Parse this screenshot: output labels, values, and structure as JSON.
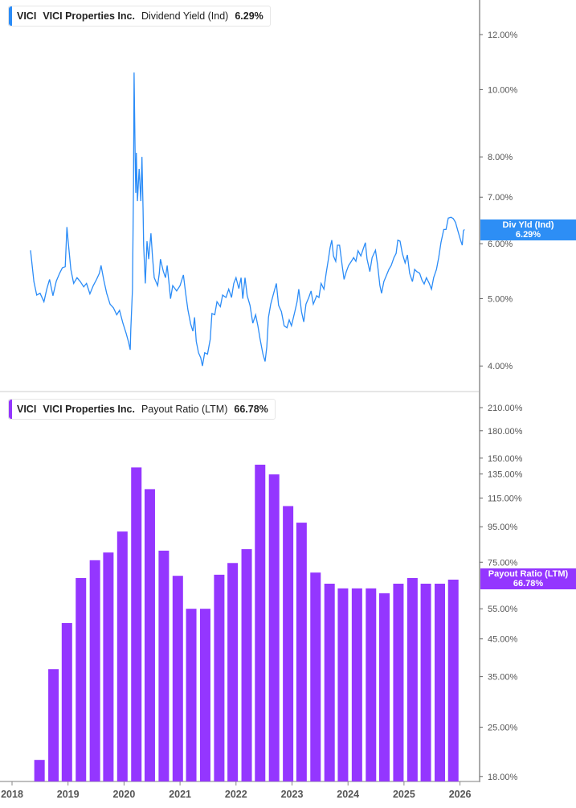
{
  "colors": {
    "line": "#2b8cf7",
    "bars": "#9436ff",
    "axis": "#aaaaaa"
  },
  "top_legend": {
    "ticker": "VICI",
    "company": "VICI Properties Inc.",
    "metric": "Dividend Yield (Ind)",
    "value": "6.29%"
  },
  "bottom_legend": {
    "ticker": "VICI",
    "company": "VICI Properties Inc.",
    "metric": "Payout Ratio (LTM)",
    "value": "66.78%"
  },
  "top_tag": {
    "label": "Div Yld (Ind)",
    "value": "6.29%"
  },
  "bottom_tag": {
    "label": "Payout Ratio (LTM)",
    "value": "66.78%"
  },
  "chart_data": [
    {
      "type": "line",
      "scale": "log",
      "series_name": "Dividend Yield (Ind)",
      "y_ticks": [
        "12.00%",
        "10.00%",
        "8.00%",
        "7.00%",
        "6.00%",
        "5.00%",
        "4.00%"
      ],
      "y_tick_values": [
        12,
        10,
        8,
        7,
        6,
        5,
        4
      ],
      "points": [
        [
          2018.33,
          5.87
        ],
        [
          2018.39,
          5.29
        ],
        [
          2018.44,
          5.06
        ],
        [
          2018.5,
          5.09
        ],
        [
          2018.57,
          4.95
        ],
        [
          2018.62,
          5.16
        ],
        [
          2018.67,
          5.33
        ],
        [
          2018.73,
          5.05
        ],
        [
          2018.79,
          5.3
        ],
        [
          2018.85,
          5.44
        ],
        [
          2018.9,
          5.54
        ],
        [
          2018.95,
          5.56
        ],
        [
          2018.98,
          6.34
        ],
        [
          2019.0,
          6.07
        ],
        [
          2019.05,
          5.51
        ],
        [
          2019.1,
          5.26
        ],
        [
          2019.16,
          5.36
        ],
        [
          2019.22,
          5.29
        ],
        [
          2019.28,
          5.2
        ],
        [
          2019.33,
          5.26
        ],
        [
          2019.39,
          5.08
        ],
        [
          2019.45,
          5.22
        ],
        [
          2019.51,
          5.33
        ],
        [
          2019.56,
          5.44
        ],
        [
          2019.59,
          5.58
        ],
        [
          2019.64,
          5.31
        ],
        [
          2019.69,
          5.09
        ],
        [
          2019.75,
          4.91
        ],
        [
          2019.81,
          4.85
        ],
        [
          2019.87,
          4.74
        ],
        [
          2019.92,
          4.81
        ],
        [
          2019.98,
          4.61
        ],
        [
          2020.04,
          4.45
        ],
        [
          2020.08,
          4.33
        ],
        [
          2020.11,
          4.22
        ],
        [
          2020.12,
          4.51
        ],
        [
          2020.15,
          5.16
        ],
        [
          2020.17,
          7.29
        ],
        [
          2020.18,
          10.58
        ],
        [
          2020.2,
          7.89
        ],
        [
          2020.21,
          7.1
        ],
        [
          2020.22,
          8.11
        ],
        [
          2020.24,
          6.91
        ],
        [
          2020.27,
          7.69
        ],
        [
          2020.3,
          6.91
        ],
        [
          2020.32,
          8.0
        ],
        [
          2020.34,
          6.7
        ],
        [
          2020.35,
          5.97
        ],
        [
          2020.38,
          5.26
        ],
        [
          2020.41,
          6.05
        ],
        [
          2020.44,
          5.7
        ],
        [
          2020.48,
          6.21
        ],
        [
          2020.51,
          5.73
        ],
        [
          2020.54,
          5.36
        ],
        [
          2020.6,
          5.22
        ],
        [
          2020.63,
          5.44
        ],
        [
          2020.65,
          5.7
        ],
        [
          2020.7,
          5.48
        ],
        [
          2020.74,
          5.36
        ],
        [
          2020.77,
          5.58
        ],
        [
          2020.8,
          5.29
        ],
        [
          2020.83,
          5.0
        ],
        [
          2020.87,
          5.22
        ],
        [
          2020.94,
          5.13
        ],
        [
          2021.0,
          5.22
        ],
        [
          2021.06,
          5.41
        ],
        [
          2021.1,
          5.09
        ],
        [
          2021.14,
          4.82
        ],
        [
          2021.19,
          4.6
        ],
        [
          2021.23,
          4.49
        ],
        [
          2021.26,
          4.7
        ],
        [
          2021.29,
          4.34
        ],
        [
          2021.33,
          4.18
        ],
        [
          2021.37,
          4.11
        ],
        [
          2021.4,
          4.0
        ],
        [
          2021.44,
          4.18
        ],
        [
          2021.49,
          4.16
        ],
        [
          2021.54,
          4.37
        ],
        [
          2021.57,
          4.76
        ],
        [
          2021.62,
          4.74
        ],
        [
          2021.66,
          4.95
        ],
        [
          2021.72,
          4.87
        ],
        [
          2021.76,
          5.06
        ],
        [
          2021.82,
          5.02
        ],
        [
          2021.87,
          5.16
        ],
        [
          2021.92,
          5.02
        ],
        [
          2021.96,
          5.26
        ],
        [
          2022.0,
          5.36
        ],
        [
          2022.05,
          5.17
        ],
        [
          2022.09,
          5.36
        ],
        [
          2022.12,
          5.0
        ],
        [
          2022.16,
          5.36
        ],
        [
          2022.2,
          5.05
        ],
        [
          2022.25,
          4.89
        ],
        [
          2022.3,
          4.61
        ],
        [
          2022.35,
          4.74
        ],
        [
          2022.39,
          4.57
        ],
        [
          2022.43,
          4.37
        ],
        [
          2022.48,
          4.16
        ],
        [
          2022.52,
          4.06
        ],
        [
          2022.55,
          4.26
        ],
        [
          2022.58,
          4.7
        ],
        [
          2022.62,
          4.91
        ],
        [
          2022.66,
          5.05
        ],
        [
          2022.72,
          5.26
        ],
        [
          2022.76,
          4.89
        ],
        [
          2022.81,
          4.79
        ],
        [
          2022.86,
          4.57
        ],
        [
          2022.91,
          4.54
        ],
        [
          2022.95,
          4.66
        ],
        [
          2022.99,
          4.57
        ],
        [
          2023.05,
          4.79
        ],
        [
          2023.09,
          4.95
        ],
        [
          2023.12,
          5.16
        ],
        [
          2023.17,
          4.79
        ],
        [
          2023.21,
          4.63
        ],
        [
          2023.25,
          4.91
        ],
        [
          2023.3,
          5.02
        ],
        [
          2023.34,
          5.13
        ],
        [
          2023.38,
          4.91
        ],
        [
          2023.44,
          5.05
        ],
        [
          2023.48,
          5.02
        ],
        [
          2023.52,
          5.26
        ],
        [
          2023.57,
          5.16
        ],
        [
          2023.61,
          5.44
        ],
        [
          2023.65,
          5.7
        ],
        [
          2023.68,
          5.92
        ],
        [
          2023.71,
          6.07
        ],
        [
          2023.74,
          5.76
        ],
        [
          2023.78,
          5.66
        ],
        [
          2023.81,
          5.97
        ],
        [
          2023.85,
          5.97
        ],
        [
          2023.9,
          5.55
        ],
        [
          2023.93,
          5.33
        ],
        [
          2023.97,
          5.47
        ],
        [
          2024.01,
          5.58
        ],
        [
          2024.06,
          5.66
        ],
        [
          2024.1,
          5.73
        ],
        [
          2024.14,
          5.66
        ],
        [
          2024.18,
          5.86
        ],
        [
          2024.23,
          5.76
        ],
        [
          2024.27,
          5.89
        ],
        [
          2024.31,
          6.02
        ],
        [
          2024.34,
          5.7
        ],
        [
          2024.39,
          5.47
        ],
        [
          2024.43,
          5.73
        ],
        [
          2024.49,
          5.87
        ],
        [
          2024.53,
          5.58
        ],
        [
          2024.57,
          5.22
        ],
        [
          2024.6,
          5.09
        ],
        [
          2024.64,
          5.29
        ],
        [
          2024.69,
          5.41
        ],
        [
          2024.73,
          5.51
        ],
        [
          2024.77,
          5.58
        ],
        [
          2024.82,
          5.73
        ],
        [
          2024.86,
          5.81
        ],
        [
          2024.89,
          6.07
        ],
        [
          2024.93,
          6.05
        ],
        [
          2024.97,
          5.81
        ],
        [
          2025.02,
          5.63
        ],
        [
          2025.06,
          5.78
        ],
        [
          2025.1,
          5.44
        ],
        [
          2025.15,
          5.29
        ],
        [
          2025.19,
          5.51
        ],
        [
          2025.23,
          5.47
        ],
        [
          2025.28,
          5.44
        ],
        [
          2025.32,
          5.32
        ],
        [
          2025.36,
          5.25
        ],
        [
          2025.4,
          5.36
        ],
        [
          2025.45,
          5.26
        ],
        [
          2025.49,
          5.16
        ],
        [
          2025.53,
          5.36
        ],
        [
          2025.58,
          5.51
        ],
        [
          2025.62,
          5.73
        ],
        [
          2025.66,
          6.02
        ],
        [
          2025.71,
          6.29
        ],
        [
          2025.75,
          6.29
        ],
        [
          2025.79,
          6.53
        ],
        [
          2025.84,
          6.55
        ],
        [
          2025.88,
          6.52
        ],
        [
          2025.92,
          6.44
        ],
        [
          2025.96,
          6.27
        ],
        [
          2026.01,
          6.07
        ],
        [
          2026.04,
          5.97
        ],
        [
          2026.06,
          6.26
        ],
        [
          2026.08,
          6.29
        ]
      ]
    },
    {
      "type": "bar",
      "scale": "log",
      "series_name": "Payout Ratio (LTM)",
      "y_ticks": [
        "210.00%",
        "180.00%",
        "150.00%",
        "135.00%",
        "115.00%",
        "95.00%",
        "75.00%",
        "55.00%",
        "45.00%",
        "35.00%",
        "25.00%",
        "18.00%"
      ],
      "y_tick_values": [
        210,
        180,
        150,
        135,
        115,
        95,
        75,
        55,
        45,
        35,
        25,
        18
      ],
      "x": [
        2018.49,
        2018.74,
        2018.98,
        2019.23,
        2019.48,
        2019.72,
        2019.97,
        2020.22,
        2020.46,
        2020.71,
        2020.96,
        2021.2,
        2021.45,
        2021.7,
        2021.94,
        2022.19,
        2022.43,
        2022.68,
        2022.93,
        2023.17,
        2023.42,
        2023.67,
        2023.91,
        2024.16,
        2024.41,
        2024.65,
        2024.9,
        2025.15,
        2025.39,
        2025.64,
        2025.88
      ],
      "values": [
        20.1,
        36.8,
        50,
        67.5,
        76,
        80,
        92,
        141,
        122,
        81,
        68.5,
        55,
        55,
        69,
        74.6,
        81.8,
        143.6,
        134.6,
        109,
        97.6,
        70,
        65,
        63,
        63,
        63,
        61,
        65,
        67.5,
        65,
        65,
        66.78
      ]
    }
  ],
  "x_axis": {
    "ticks": [
      "2018",
      "2019",
      "2020",
      "2021",
      "2022",
      "2023",
      "2024",
      "2025",
      "2026"
    ],
    "tick_values": [
      2018,
      2019,
      2020,
      2021,
      2022,
      2023,
      2024,
      2025,
      2026
    ]
  }
}
